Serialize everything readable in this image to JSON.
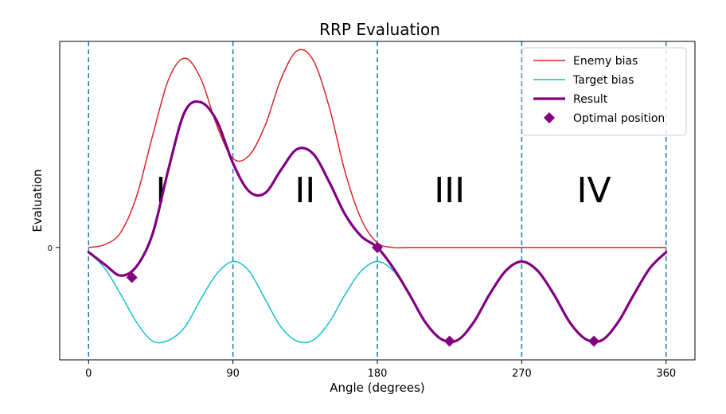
{
  "chart_data": {
    "type": "line",
    "title": "RRP Evaluation",
    "xlabel": "Angle (degrees)",
    "ylabel": "Evaluation",
    "xlim": [
      -18,
      378
    ],
    "ylim": [
      -1.2,
      2.2
    ],
    "x_ticks": [
      0,
      90,
      180,
      270,
      360
    ],
    "y_ticks": [
      0
    ],
    "grid": false,
    "legend_position": "top-right",
    "vlines": {
      "x": [
        0,
        90,
        180,
        270,
        360
      ],
      "color": "#1f77b4",
      "style": "dashed"
    },
    "regions": [
      {
        "label": "I",
        "x": 45,
        "y": 0.62
      },
      {
        "label": "II",
        "x": 135,
        "y": 0.62
      },
      {
        "label": "III",
        "x": 225,
        "y": 0.62
      },
      {
        "label": "IV",
        "x": 315,
        "y": 0.62
      }
    ],
    "series": [
      {
        "name": "Enemy bias",
        "color": "#d62728",
        "width": 1.5,
        "x": [
          0,
          10,
          20,
          30,
          40,
          50,
          60,
          70,
          80,
          90,
          100,
          110,
          120,
          130,
          140,
          150,
          160,
          170,
          180,
          190,
          200,
          210,
          220,
          230,
          240,
          250,
          260,
          270,
          280,
          290,
          300,
          310,
          320,
          330,
          340,
          350,
          360
        ],
        "y": [
          0,
          0.03,
          0.16,
          0.55,
          1.2,
          1.8,
          2.02,
          1.8,
          1.3,
          0.95,
          0.98,
          1.3,
          1.8,
          2.1,
          2.0,
          1.5,
          0.8,
          0.3,
          0.05,
          0,
          0,
          0,
          0,
          0,
          0,
          0,
          0,
          0,
          0,
          0,
          0,
          0,
          0,
          0,
          0,
          0,
          0
        ]
      },
      {
        "name": "Target bias",
        "color": "#17becf",
        "width": 1.5,
        "x": [
          0,
          10,
          20,
          30,
          40,
          50,
          60,
          70,
          80,
          90,
          100,
          110,
          120,
          130,
          140,
          150,
          160,
          170,
          180,
          190,
          200,
          210,
          220,
          230,
          240,
          250,
          260,
          270,
          280,
          290,
          300,
          310,
          320,
          330,
          340,
          350,
          360
        ],
        "y": [
          -0.05,
          -0.22,
          -0.5,
          -0.8,
          -1.0,
          -0.99,
          -0.85,
          -0.55,
          -0.28,
          -0.15,
          -0.25,
          -0.55,
          -0.85,
          -1.0,
          -0.99,
          -0.8,
          -0.5,
          -0.25,
          -0.15,
          -0.25,
          -0.5,
          -0.8,
          -0.98,
          -0.99,
          -0.8,
          -0.5,
          -0.25,
          -0.15,
          -0.25,
          -0.5,
          -0.8,
          -0.98,
          -0.99,
          -0.8,
          -0.5,
          -0.22,
          -0.05
        ]
      },
      {
        "name": "Result",
        "color": "#800080",
        "width": 3.2,
        "x": [
          0,
          10,
          20,
          30,
          40,
          50,
          60,
          70,
          80,
          90,
          100,
          110,
          120,
          130,
          140,
          150,
          160,
          170,
          180,
          190,
          200,
          210,
          220,
          230,
          240,
          250,
          260,
          270,
          280,
          290,
          300,
          310,
          320,
          330,
          340,
          350,
          360
        ],
        "y": [
          -0.05,
          -0.18,
          -0.3,
          -0.2,
          0.15,
          0.85,
          1.45,
          1.55,
          1.35,
          0.9,
          0.6,
          0.58,
          0.83,
          1.05,
          1.0,
          0.7,
          0.35,
          0.12,
          0,
          -0.22,
          -0.5,
          -0.8,
          -0.98,
          -0.99,
          -0.8,
          -0.5,
          -0.25,
          -0.15,
          -0.25,
          -0.5,
          -0.8,
          -0.98,
          -0.99,
          -0.8,
          -0.5,
          -0.22,
          -0.05
        ]
      },
      {
        "name": "Optimal position",
        "type": "scatter",
        "color": "#800080",
        "marker": "diamond",
        "x": [
          27,
          180,
          225,
          315
        ],
        "y": [
          -0.32,
          0,
          -1.0,
          -1.0
        ]
      }
    ]
  }
}
